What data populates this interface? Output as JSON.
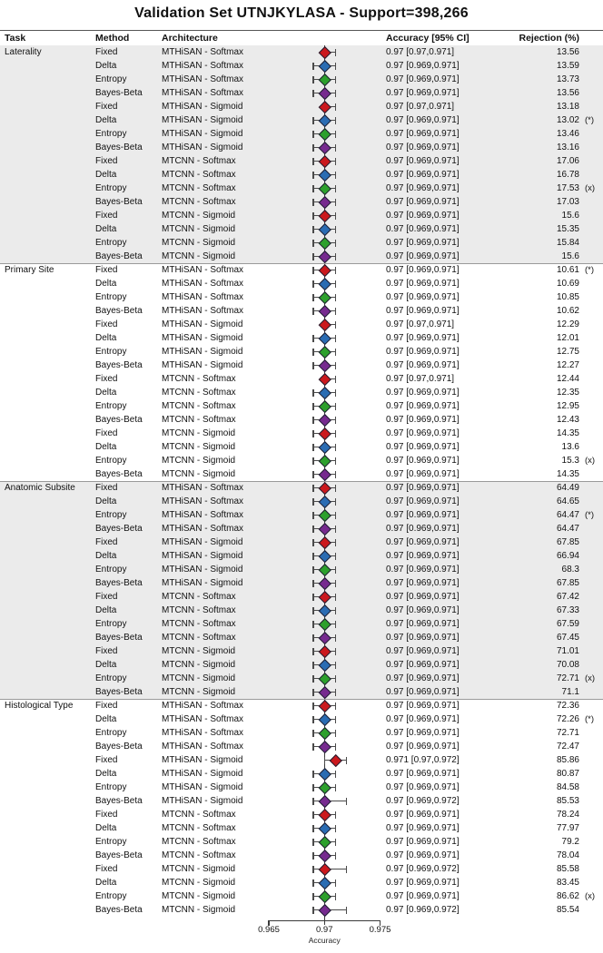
{
  "title": "Validation Set UTNJKYLASA - Support=398,266",
  "header": {
    "task": "Task",
    "method": "Method",
    "architecture": "Architecture",
    "accuracy": "Accuracy [95% CI]",
    "rejection": "Rejection (%)"
  },
  "axis": {
    "label": "Accuracy",
    "min": 0.965,
    "max": 0.975,
    "tick_values": [
      0.965,
      0.97,
      0.975
    ],
    "tick_labels": [
      "0.965",
      "0.97",
      "0.975"
    ]
  },
  "colors": {
    "Fixed": "#cb181d",
    "Delta": "#2a6cb3",
    "Entropy": "#2ca02c",
    "Bayes-Beta": "#762a8f",
    "marker_outline": "#1e1e30",
    "error_bar": "#4a4a4a",
    "shaded_band": "#ebebeb"
  },
  "chart_data": {
    "type": "forest",
    "x_axis": {
      "label": "Accuracy",
      "range": [
        0.965,
        0.975
      ],
      "ticks": [
        0.965,
        0.97,
        0.975
      ]
    },
    "sections": [
      {
        "task": "Laterality",
        "shaded": true,
        "rows": [
          {
            "method": "Fixed",
            "architecture": "MTHiSAN - Softmax",
            "acc": 0.97,
            "lo": 0.97,
            "hi": 0.971,
            "acc_label": "0.97 [0.97,0.971]",
            "rejection": "13.56",
            "flag": ""
          },
          {
            "method": "Delta",
            "architecture": "MTHiSAN - Softmax",
            "acc": 0.97,
            "lo": 0.969,
            "hi": 0.971,
            "acc_label": "0.97 [0.969,0.971]",
            "rejection": "13.59",
            "flag": ""
          },
          {
            "method": "Entropy",
            "architecture": "MTHiSAN - Softmax",
            "acc": 0.97,
            "lo": 0.969,
            "hi": 0.971,
            "acc_label": "0.97 [0.969,0.971]",
            "rejection": "13.73",
            "flag": ""
          },
          {
            "method": "Bayes-Beta",
            "architecture": "MTHiSAN - Softmax",
            "acc": 0.97,
            "lo": 0.969,
            "hi": 0.971,
            "acc_label": "0.97 [0.969,0.971]",
            "rejection": "13.56",
            "flag": ""
          },
          {
            "method": "Fixed",
            "architecture": "MTHiSAN - Sigmoid",
            "acc": 0.97,
            "lo": 0.97,
            "hi": 0.971,
            "acc_label": "0.97 [0.97,0.971]",
            "rejection": "13.18",
            "flag": ""
          },
          {
            "method": "Delta",
            "architecture": "MTHiSAN - Sigmoid",
            "acc": 0.97,
            "lo": 0.969,
            "hi": 0.971,
            "acc_label": "0.97 [0.969,0.971]",
            "rejection": "13.02",
            "flag": "(*)"
          },
          {
            "method": "Entropy",
            "architecture": "MTHiSAN - Sigmoid",
            "acc": 0.97,
            "lo": 0.969,
            "hi": 0.971,
            "acc_label": "0.97 [0.969,0.971]",
            "rejection": "13.46",
            "flag": ""
          },
          {
            "method": "Bayes-Beta",
            "architecture": "MTHiSAN - Sigmoid",
            "acc": 0.97,
            "lo": 0.969,
            "hi": 0.971,
            "acc_label": "0.97 [0.969,0.971]",
            "rejection": "13.16",
            "flag": ""
          },
          {
            "method": "Fixed",
            "architecture": "MTCNN - Softmax",
            "acc": 0.97,
            "lo": 0.969,
            "hi": 0.971,
            "acc_label": "0.97 [0.969,0.971]",
            "rejection": "17.06",
            "flag": ""
          },
          {
            "method": "Delta",
            "architecture": "MTCNN - Softmax",
            "acc": 0.97,
            "lo": 0.969,
            "hi": 0.971,
            "acc_label": "0.97 [0.969,0.971]",
            "rejection": "16.78",
            "flag": ""
          },
          {
            "method": "Entropy",
            "architecture": "MTCNN - Softmax",
            "acc": 0.97,
            "lo": 0.969,
            "hi": 0.971,
            "acc_label": "0.97 [0.969,0.971]",
            "rejection": "17.53",
            "flag": "(x)"
          },
          {
            "method": "Bayes-Beta",
            "architecture": "MTCNN - Softmax",
            "acc": 0.97,
            "lo": 0.969,
            "hi": 0.971,
            "acc_label": "0.97 [0.969,0.971]",
            "rejection": "17.03",
            "flag": ""
          },
          {
            "method": "Fixed",
            "architecture": "MTCNN - Sigmoid",
            "acc": 0.97,
            "lo": 0.969,
            "hi": 0.971,
            "acc_label": "0.97 [0.969,0.971]",
            "rejection": "15.6",
            "flag": ""
          },
          {
            "method": "Delta",
            "architecture": "MTCNN - Sigmoid",
            "acc": 0.97,
            "lo": 0.969,
            "hi": 0.971,
            "acc_label": "0.97 [0.969,0.971]",
            "rejection": "15.35",
            "flag": ""
          },
          {
            "method": "Entropy",
            "architecture": "MTCNN - Sigmoid",
            "acc": 0.97,
            "lo": 0.969,
            "hi": 0.971,
            "acc_label": "0.97 [0.969,0.971]",
            "rejection": "15.84",
            "flag": ""
          },
          {
            "method": "Bayes-Beta",
            "architecture": "MTCNN - Sigmoid",
            "acc": 0.97,
            "lo": 0.969,
            "hi": 0.971,
            "acc_label": "0.97 [0.969,0.971]",
            "rejection": "15.6",
            "flag": ""
          }
        ]
      },
      {
        "task": "Primary Site",
        "shaded": false,
        "rows": [
          {
            "method": "Fixed",
            "architecture": "MTHiSAN - Softmax",
            "acc": 0.97,
            "lo": 0.969,
            "hi": 0.971,
            "acc_label": "0.97 [0.969,0.971]",
            "rejection": "10.61",
            "flag": "(*)"
          },
          {
            "method": "Delta",
            "architecture": "MTHiSAN - Softmax",
            "acc": 0.97,
            "lo": 0.969,
            "hi": 0.971,
            "acc_label": "0.97 [0.969,0.971]",
            "rejection": "10.69",
            "flag": ""
          },
          {
            "method": "Entropy",
            "architecture": "MTHiSAN - Softmax",
            "acc": 0.97,
            "lo": 0.969,
            "hi": 0.971,
            "acc_label": "0.97 [0.969,0.971]",
            "rejection": "10.85",
            "flag": ""
          },
          {
            "method": "Bayes-Beta",
            "architecture": "MTHiSAN - Softmax",
            "acc": 0.97,
            "lo": 0.969,
            "hi": 0.971,
            "acc_label": "0.97 [0.969,0.971]",
            "rejection": "10.62",
            "flag": ""
          },
          {
            "method": "Fixed",
            "architecture": "MTHiSAN - Sigmoid",
            "acc": 0.97,
            "lo": 0.97,
            "hi": 0.971,
            "acc_label": "0.97 [0.97,0.971]",
            "rejection": "12.29",
            "flag": ""
          },
          {
            "method": "Delta",
            "architecture": "MTHiSAN - Sigmoid",
            "acc": 0.97,
            "lo": 0.969,
            "hi": 0.971,
            "acc_label": "0.97 [0.969,0.971]",
            "rejection": "12.01",
            "flag": ""
          },
          {
            "method": "Entropy",
            "architecture": "MTHiSAN - Sigmoid",
            "acc": 0.97,
            "lo": 0.969,
            "hi": 0.971,
            "acc_label": "0.97 [0.969,0.971]",
            "rejection": "12.75",
            "flag": ""
          },
          {
            "method": "Bayes-Beta",
            "architecture": "MTHiSAN - Sigmoid",
            "acc": 0.97,
            "lo": 0.969,
            "hi": 0.971,
            "acc_label": "0.97 [0.969,0.971]",
            "rejection": "12.27",
            "flag": ""
          },
          {
            "method": "Fixed",
            "architecture": "MTCNN - Softmax",
            "acc": 0.97,
            "lo": 0.97,
            "hi": 0.971,
            "acc_label": "0.97 [0.97,0.971]",
            "rejection": "12.44",
            "flag": ""
          },
          {
            "method": "Delta",
            "architecture": "MTCNN - Softmax",
            "acc": 0.97,
            "lo": 0.969,
            "hi": 0.971,
            "acc_label": "0.97 [0.969,0.971]",
            "rejection": "12.35",
            "flag": ""
          },
          {
            "method": "Entropy",
            "architecture": "MTCNN - Softmax",
            "acc": 0.97,
            "lo": 0.969,
            "hi": 0.971,
            "acc_label": "0.97 [0.969,0.971]",
            "rejection": "12.95",
            "flag": ""
          },
          {
            "method": "Bayes-Beta",
            "architecture": "MTCNN - Softmax",
            "acc": 0.97,
            "lo": 0.969,
            "hi": 0.971,
            "acc_label": "0.97 [0.969,0.971]",
            "rejection": "12.43",
            "flag": ""
          },
          {
            "method": "Fixed",
            "architecture": "MTCNN - Sigmoid",
            "acc": 0.97,
            "lo": 0.969,
            "hi": 0.971,
            "acc_label": "0.97 [0.969,0.971]",
            "rejection": "14.35",
            "flag": ""
          },
          {
            "method": "Delta",
            "architecture": "MTCNN - Sigmoid",
            "acc": 0.97,
            "lo": 0.969,
            "hi": 0.971,
            "acc_label": "0.97 [0.969,0.971]",
            "rejection": "13.6",
            "flag": ""
          },
          {
            "method": "Entropy",
            "architecture": "MTCNN - Sigmoid",
            "acc": 0.97,
            "lo": 0.969,
            "hi": 0.971,
            "acc_label": "0.97 [0.969,0.971]",
            "rejection": "15.3",
            "flag": "(x)"
          },
          {
            "method": "Bayes-Beta",
            "architecture": "MTCNN - Sigmoid",
            "acc": 0.97,
            "lo": 0.969,
            "hi": 0.971,
            "acc_label": "0.97 [0.969,0.971]",
            "rejection": "14.35",
            "flag": ""
          }
        ]
      },
      {
        "task": "Anatomic Subsite",
        "shaded": true,
        "rows": [
          {
            "method": "Fixed",
            "architecture": "MTHiSAN - Softmax",
            "acc": 0.97,
            "lo": 0.969,
            "hi": 0.971,
            "acc_label": "0.97 [0.969,0.971]",
            "rejection": "64.49",
            "flag": ""
          },
          {
            "method": "Delta",
            "architecture": "MTHiSAN - Softmax",
            "acc": 0.97,
            "lo": 0.969,
            "hi": 0.971,
            "acc_label": "0.97 [0.969,0.971]",
            "rejection": "64.65",
            "flag": ""
          },
          {
            "method": "Entropy",
            "architecture": "MTHiSAN - Softmax",
            "acc": 0.97,
            "lo": 0.969,
            "hi": 0.971,
            "acc_label": "0.97 [0.969,0.971]",
            "rejection": "64.47",
            "flag": "(*)"
          },
          {
            "method": "Bayes-Beta",
            "architecture": "MTHiSAN - Softmax",
            "acc": 0.97,
            "lo": 0.969,
            "hi": 0.971,
            "acc_label": "0.97 [0.969,0.971]",
            "rejection": "64.47",
            "flag": ""
          },
          {
            "method": "Fixed",
            "architecture": "MTHiSAN - Sigmoid",
            "acc": 0.97,
            "lo": 0.969,
            "hi": 0.971,
            "acc_label": "0.97 [0.969,0.971]",
            "rejection": "67.85",
            "flag": ""
          },
          {
            "method": "Delta",
            "architecture": "MTHiSAN - Sigmoid",
            "acc": 0.97,
            "lo": 0.969,
            "hi": 0.971,
            "acc_label": "0.97 [0.969,0.971]",
            "rejection": "66.94",
            "flag": ""
          },
          {
            "method": "Entropy",
            "architecture": "MTHiSAN - Sigmoid",
            "acc": 0.97,
            "lo": 0.969,
            "hi": 0.971,
            "acc_label": "0.97 [0.969,0.971]",
            "rejection": "68.3",
            "flag": ""
          },
          {
            "method": "Bayes-Beta",
            "architecture": "MTHiSAN - Sigmoid",
            "acc": 0.97,
            "lo": 0.969,
            "hi": 0.971,
            "acc_label": "0.97 [0.969,0.971]",
            "rejection": "67.85",
            "flag": ""
          },
          {
            "method": "Fixed",
            "architecture": "MTCNN - Softmax",
            "acc": 0.97,
            "lo": 0.969,
            "hi": 0.971,
            "acc_label": "0.97 [0.969,0.971]",
            "rejection": "67.42",
            "flag": ""
          },
          {
            "method": "Delta",
            "architecture": "MTCNN - Softmax",
            "acc": 0.97,
            "lo": 0.969,
            "hi": 0.971,
            "acc_label": "0.97 [0.969,0.971]",
            "rejection": "67.33",
            "flag": ""
          },
          {
            "method": "Entropy",
            "architecture": "MTCNN - Softmax",
            "acc": 0.97,
            "lo": 0.969,
            "hi": 0.971,
            "acc_label": "0.97 [0.969,0.971]",
            "rejection": "67.59",
            "flag": ""
          },
          {
            "method": "Bayes-Beta",
            "architecture": "MTCNN - Softmax",
            "acc": 0.97,
            "lo": 0.969,
            "hi": 0.971,
            "acc_label": "0.97 [0.969,0.971]",
            "rejection": "67.45",
            "flag": ""
          },
          {
            "method": "Fixed",
            "architecture": "MTCNN - Sigmoid",
            "acc": 0.97,
            "lo": 0.969,
            "hi": 0.971,
            "acc_label": "0.97 [0.969,0.971]",
            "rejection": "71.01",
            "flag": ""
          },
          {
            "method": "Delta",
            "architecture": "MTCNN - Sigmoid",
            "acc": 0.97,
            "lo": 0.969,
            "hi": 0.971,
            "acc_label": "0.97 [0.969,0.971]",
            "rejection": "70.08",
            "flag": ""
          },
          {
            "method": "Entropy",
            "architecture": "MTCNN - Sigmoid",
            "acc": 0.97,
            "lo": 0.969,
            "hi": 0.971,
            "acc_label": "0.97 [0.969,0.971]",
            "rejection": "72.71",
            "flag": "(x)"
          },
          {
            "method": "Bayes-Beta",
            "architecture": "MTCNN - Sigmoid",
            "acc": 0.97,
            "lo": 0.969,
            "hi": 0.971,
            "acc_label": "0.97 [0.969,0.971]",
            "rejection": "71.1",
            "flag": ""
          }
        ]
      },
      {
        "task": "Histological Type",
        "shaded": false,
        "rows": [
          {
            "method": "Fixed",
            "architecture": "MTHiSAN - Softmax",
            "acc": 0.97,
            "lo": 0.969,
            "hi": 0.971,
            "acc_label": "0.97 [0.969,0.971]",
            "rejection": "72.36",
            "flag": ""
          },
          {
            "method": "Delta",
            "architecture": "MTHiSAN - Softmax",
            "acc": 0.97,
            "lo": 0.969,
            "hi": 0.971,
            "acc_label": "0.97 [0.969,0.971]",
            "rejection": "72.26",
            "flag": "(*)"
          },
          {
            "method": "Entropy",
            "architecture": "MTHiSAN - Softmax",
            "acc": 0.97,
            "lo": 0.969,
            "hi": 0.971,
            "acc_label": "0.97 [0.969,0.971]",
            "rejection": "72.71",
            "flag": ""
          },
          {
            "method": "Bayes-Beta",
            "architecture": "MTHiSAN - Softmax",
            "acc": 0.97,
            "lo": 0.969,
            "hi": 0.971,
            "acc_label": "0.97 [0.969,0.971]",
            "rejection": "72.47",
            "flag": ""
          },
          {
            "method": "Fixed",
            "architecture": "MTHiSAN - Sigmoid",
            "acc": 0.971,
            "lo": 0.97,
            "hi": 0.972,
            "acc_label": "0.971 [0.97,0.972]",
            "rejection": "85.86",
            "flag": ""
          },
          {
            "method": "Delta",
            "architecture": "MTHiSAN - Sigmoid",
            "acc": 0.97,
            "lo": 0.969,
            "hi": 0.971,
            "acc_label": "0.97 [0.969,0.971]",
            "rejection": "80.87",
            "flag": ""
          },
          {
            "method": "Entropy",
            "architecture": "MTHiSAN - Sigmoid",
            "acc": 0.97,
            "lo": 0.969,
            "hi": 0.971,
            "acc_label": "0.97 [0.969,0.971]",
            "rejection": "84.58",
            "flag": ""
          },
          {
            "method": "Bayes-Beta",
            "architecture": "MTHiSAN - Sigmoid",
            "acc": 0.97,
            "lo": 0.969,
            "hi": 0.972,
            "acc_label": "0.97 [0.969,0.972]",
            "rejection": "85.53",
            "flag": ""
          },
          {
            "method": "Fixed",
            "architecture": "MTCNN - Softmax",
            "acc": 0.97,
            "lo": 0.969,
            "hi": 0.971,
            "acc_label": "0.97 [0.969,0.971]",
            "rejection": "78.24",
            "flag": ""
          },
          {
            "method": "Delta",
            "architecture": "MTCNN - Softmax",
            "acc": 0.97,
            "lo": 0.969,
            "hi": 0.971,
            "acc_label": "0.97 [0.969,0.971]",
            "rejection": "77.97",
            "flag": ""
          },
          {
            "method": "Entropy",
            "architecture": "MTCNN - Softmax",
            "acc": 0.97,
            "lo": 0.969,
            "hi": 0.971,
            "acc_label": "0.97 [0.969,0.971]",
            "rejection": "79.2",
            "flag": ""
          },
          {
            "method": "Bayes-Beta",
            "architecture": "MTCNN - Softmax",
            "acc": 0.97,
            "lo": 0.969,
            "hi": 0.971,
            "acc_label": "0.97 [0.969,0.971]",
            "rejection": "78.04",
            "flag": ""
          },
          {
            "method": "Fixed",
            "architecture": "MTCNN - Sigmoid",
            "acc": 0.97,
            "lo": 0.969,
            "hi": 0.972,
            "acc_label": "0.97 [0.969,0.972]",
            "rejection": "85.58",
            "flag": ""
          },
          {
            "method": "Delta",
            "architecture": "MTCNN - Sigmoid",
            "acc": 0.97,
            "lo": 0.969,
            "hi": 0.971,
            "acc_label": "0.97 [0.969,0.971]",
            "rejection": "83.45",
            "flag": ""
          },
          {
            "method": "Entropy",
            "architecture": "MTCNN - Sigmoid",
            "acc": 0.97,
            "lo": 0.969,
            "hi": 0.971,
            "acc_label": "0.97 [0.969,0.971]",
            "rejection": "86.62",
            "flag": "(x)"
          },
          {
            "method": "Bayes-Beta",
            "architecture": "MTCNN - Sigmoid",
            "acc": 0.97,
            "lo": 0.969,
            "hi": 0.972,
            "acc_label": "0.97 [0.969,0.972]",
            "rejection": "85.54",
            "flag": ""
          }
        ]
      }
    ]
  }
}
